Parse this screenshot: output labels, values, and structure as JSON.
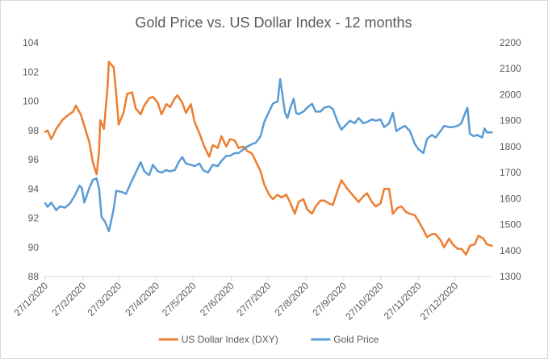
{
  "chart_data": {
    "type": "line",
    "title": "Gold Price vs. US Dollar Index - 12 months",
    "xlabel": "",
    "ylabel": "",
    "x_tick_labels": [
      "27/1/2020",
      "27/2/2020",
      "27/3/2020",
      "27/4/2020",
      "27/5/2020",
      "27/6/2020",
      "27/7/2020",
      "27/8/2020",
      "27/9/2020",
      "27/10/2020",
      "27/11/2020",
      "27/12/2020"
    ],
    "x_range": [
      "2020-01-27",
      "2021-01-27"
    ],
    "y_left": {
      "min": 88,
      "max": 104,
      "step": 2,
      "ticks": [
        "88",
        "90",
        "92",
        "94",
        "96",
        "98",
        "100",
        "102",
        "104"
      ]
    },
    "y_right": {
      "min": 1300,
      "max": 2200,
      "step": 100,
      "ticks": [
        "1300",
        "1400",
        "1500",
        "1600",
        "1700",
        "1800",
        "1900",
        "2000",
        "2100",
        "2200"
      ]
    },
    "grid": false,
    "legend_position": "bottom",
    "series": [
      {
        "name": "US Dollar Index (DXY)",
        "color": "#ED7D31",
        "axis": "left",
        "points": [
          [
            "2020-01-27",
            97.9
          ],
          [
            "2020-01-29",
            98.0
          ],
          [
            "2020-02-01",
            97.4
          ],
          [
            "2020-02-05",
            98.1
          ],
          [
            "2020-02-10",
            98.7
          ],
          [
            "2020-02-14",
            99.0
          ],
          [
            "2020-02-19",
            99.3
          ],
          [
            "2020-02-21",
            99.7
          ],
          [
            "2020-02-25",
            99.1
          ],
          [
            "2020-02-28",
            98.3
          ],
          [
            "2020-03-03",
            97.2
          ],
          [
            "2020-03-06",
            95.8
          ],
          [
            "2020-03-09",
            95.0
          ],
          [
            "2020-03-11",
            96.5
          ],
          [
            "2020-03-12",
            98.7
          ],
          [
            "2020-03-15",
            98.1
          ],
          [
            "2020-03-18",
            101.0
          ],
          [
            "2020-03-19",
            102.7
          ],
          [
            "2020-03-23",
            102.3
          ],
          [
            "2020-03-25",
            100.5
          ],
          [
            "2020-03-27",
            98.4
          ],
          [
            "2020-03-31",
            99.2
          ],
          [
            "2020-04-03",
            100.5
          ],
          [
            "2020-04-07",
            100.6
          ],
          [
            "2020-04-10",
            99.5
          ],
          [
            "2020-04-14",
            99.1
          ],
          [
            "2020-04-17",
            99.7
          ],
          [
            "2020-04-21",
            100.2
          ],
          [
            "2020-04-24",
            100.3
          ],
          [
            "2020-04-28",
            99.9
          ],
          [
            "2020-05-01",
            99.1
          ],
          [
            "2020-05-05",
            99.8
          ],
          [
            "2020-05-08",
            99.6
          ],
          [
            "2020-05-12",
            100.2
          ],
          [
            "2020-05-14",
            100.4
          ],
          [
            "2020-05-18",
            99.9
          ],
          [
            "2020-05-21",
            99.2
          ],
          [
            "2020-05-25",
            99.8
          ],
          [
            "2020-05-28",
            98.6
          ],
          [
            "2020-06-01",
            97.8
          ],
          [
            "2020-06-05",
            96.9
          ],
          [
            "2020-06-09",
            96.2
          ],
          [
            "2020-06-12",
            97.0
          ],
          [
            "2020-06-16",
            96.8
          ],
          [
            "2020-06-19",
            97.6
          ],
          [
            "2020-06-23",
            96.9
          ],
          [
            "2020-06-26",
            97.4
          ],
          [
            "2020-06-30",
            97.3
          ],
          [
            "2020-07-03",
            96.8
          ],
          [
            "2020-07-07",
            96.9
          ],
          [
            "2020-07-10",
            96.6
          ],
          [
            "2020-07-14",
            96.4
          ],
          [
            "2020-07-17",
            95.9
          ],
          [
            "2020-07-21",
            95.2
          ],
          [
            "2020-07-24",
            94.3
          ],
          [
            "2020-07-28",
            93.6
          ],
          [
            "2020-07-31",
            93.3
          ],
          [
            "2020-08-04",
            93.6
          ],
          [
            "2020-08-07",
            93.4
          ],
          [
            "2020-08-11",
            93.6
          ],
          [
            "2020-08-14",
            93.1
          ],
          [
            "2020-08-18",
            92.3
          ],
          [
            "2020-08-21",
            93.1
          ],
          [
            "2020-08-25",
            93.3
          ],
          [
            "2020-08-28",
            92.6
          ],
          [
            "2020-09-01",
            92.3
          ],
          [
            "2020-09-04",
            92.8
          ],
          [
            "2020-09-08",
            93.2
          ],
          [
            "2020-09-11",
            93.2
          ],
          [
            "2020-09-15",
            93.0
          ],
          [
            "2020-09-18",
            92.9
          ],
          [
            "2020-09-22",
            93.9
          ],
          [
            "2020-09-25",
            94.6
          ],
          [
            "2020-09-29",
            94.1
          ],
          [
            "2020-10-02",
            93.8
          ],
          [
            "2020-10-06",
            93.4
          ],
          [
            "2020-10-09",
            93.1
          ],
          [
            "2020-10-13",
            93.5
          ],
          [
            "2020-10-16",
            93.7
          ],
          [
            "2020-10-20",
            93.1
          ],
          [
            "2020-10-23",
            92.8
          ],
          [
            "2020-10-27",
            93.0
          ],
          [
            "2020-10-30",
            94.0
          ],
          [
            "2020-11-03",
            94.0
          ],
          [
            "2020-11-06",
            92.3
          ],
          [
            "2020-11-10",
            92.7
          ],
          [
            "2020-11-13",
            92.8
          ],
          [
            "2020-11-17",
            92.4
          ],
          [
            "2020-11-20",
            92.3
          ],
          [
            "2020-11-24",
            92.2
          ],
          [
            "2020-11-27",
            91.8
          ],
          [
            "2020-12-01",
            91.2
          ],
          [
            "2020-12-04",
            90.7
          ],
          [
            "2020-12-08",
            90.9
          ],
          [
            "2020-12-11",
            90.9
          ],
          [
            "2020-12-15",
            90.5
          ],
          [
            "2020-12-18",
            90.0
          ],
          [
            "2020-12-22",
            90.6
          ],
          [
            "2020-12-25",
            90.2
          ],
          [
            "2020-12-29",
            89.9
          ],
          [
            "2021-01-01",
            89.9
          ],
          [
            "2021-01-05",
            89.5
          ],
          [
            "2021-01-08",
            90.1
          ],
          [
            "2021-01-12",
            90.2
          ],
          [
            "2021-01-15",
            90.8
          ],
          [
            "2021-01-19",
            90.6
          ],
          [
            "2021-01-22",
            90.2
          ],
          [
            "2021-01-26",
            90.1
          ]
        ]
      },
      {
        "name": "Gold Price",
        "color": "#5B9BD5",
        "axis": "right",
        "points": [
          [
            "2020-01-27",
            1582
          ],
          [
            "2020-01-29",
            1568
          ],
          [
            "2020-02-01",
            1585
          ],
          [
            "2020-02-05",
            1555
          ],
          [
            "2020-02-08",
            1570
          ],
          [
            "2020-02-12",
            1565
          ],
          [
            "2020-02-16",
            1580
          ],
          [
            "2020-02-20",
            1610
          ],
          [
            "2020-02-24",
            1650
          ],
          [
            "2020-02-26",
            1640
          ],
          [
            "2020-02-28",
            1585
          ],
          [
            "2020-03-03",
            1640
          ],
          [
            "2020-03-06",
            1672
          ],
          [
            "2020-03-09",
            1678
          ],
          [
            "2020-03-11",
            1640
          ],
          [
            "2020-03-13",
            1530
          ],
          [
            "2020-03-16",
            1510
          ],
          [
            "2020-03-19",
            1474
          ],
          [
            "2020-03-23",
            1560
          ],
          [
            "2020-03-25",
            1630
          ],
          [
            "2020-03-30",
            1625
          ],
          [
            "2020-04-02",
            1618
          ],
          [
            "2020-04-06",
            1660
          ],
          [
            "2020-04-09",
            1690
          ],
          [
            "2020-04-14",
            1740
          ],
          [
            "2020-04-17",
            1705
          ],
          [
            "2020-04-21",
            1690
          ],
          [
            "2020-04-24",
            1730
          ],
          [
            "2020-04-28",
            1705
          ],
          [
            "2020-05-01",
            1700
          ],
          [
            "2020-05-05",
            1710
          ],
          [
            "2020-05-08",
            1705
          ],
          [
            "2020-05-12",
            1710
          ],
          [
            "2020-05-15",
            1740
          ],
          [
            "2020-05-18",
            1760
          ],
          [
            "2020-05-21",
            1735
          ],
          [
            "2020-05-25",
            1730
          ],
          [
            "2020-05-28",
            1725
          ],
          [
            "2020-06-01",
            1735
          ],
          [
            "2020-06-04",
            1710
          ],
          [
            "2020-06-08",
            1700
          ],
          [
            "2020-06-12",
            1730
          ],
          [
            "2020-06-16",
            1725
          ],
          [
            "2020-06-19",
            1745
          ],
          [
            "2020-06-23",
            1765
          ],
          [
            "2020-06-26",
            1765
          ],
          [
            "2020-06-30",
            1775
          ],
          [
            "2020-07-03",
            1775
          ],
          [
            "2020-07-07",
            1790
          ],
          [
            "2020-07-10",
            1800
          ],
          [
            "2020-07-14",
            1810
          ],
          [
            "2020-07-17",
            1815
          ],
          [
            "2020-07-21",
            1840
          ],
          [
            "2020-07-24",
            1895
          ],
          [
            "2020-07-28",
            1935
          ],
          [
            "2020-07-31",
            1965
          ],
          [
            "2020-08-04",
            1975
          ],
          [
            "2020-08-06",
            2060
          ],
          [
            "2020-08-10",
            1930
          ],
          [
            "2020-08-12",
            1910
          ],
          [
            "2020-08-14",
            1945
          ],
          [
            "2020-08-17",
            1985
          ],
          [
            "2020-08-19",
            1930
          ],
          [
            "2020-08-21",
            1925
          ],
          [
            "2020-08-25",
            1935
          ],
          [
            "2020-08-28",
            1950
          ],
          [
            "2020-09-01",
            1965
          ],
          [
            "2020-09-04",
            1935
          ],
          [
            "2020-09-08",
            1935
          ],
          [
            "2020-09-11",
            1950
          ],
          [
            "2020-09-15",
            1955
          ],
          [
            "2020-09-18",
            1945
          ],
          [
            "2020-09-22",
            1895
          ],
          [
            "2020-09-25",
            1865
          ],
          [
            "2020-09-29",
            1885
          ],
          [
            "2020-10-02",
            1900
          ],
          [
            "2020-10-06",
            1890
          ],
          [
            "2020-10-09",
            1910
          ],
          [
            "2020-10-13",
            1890
          ],
          [
            "2020-10-16",
            1895
          ],
          [
            "2020-10-20",
            1905
          ],
          [
            "2020-10-23",
            1900
          ],
          [
            "2020-10-27",
            1905
          ],
          [
            "2020-10-30",
            1875
          ],
          [
            "2020-11-03",
            1890
          ],
          [
            "2020-11-06",
            1930
          ],
          [
            "2020-11-09",
            1860
          ],
          [
            "2020-11-12",
            1870
          ],
          [
            "2020-11-16",
            1880
          ],
          [
            "2020-11-20",
            1860
          ],
          [
            "2020-11-24",
            1810
          ],
          [
            "2020-11-27",
            1790
          ],
          [
            "2020-12-01",
            1775
          ],
          [
            "2020-12-04",
            1830
          ],
          [
            "2020-12-08",
            1845
          ],
          [
            "2020-12-11",
            1835
          ],
          [
            "2020-12-15",
            1860
          ],
          [
            "2020-12-18",
            1880
          ],
          [
            "2020-12-22",
            1875
          ],
          [
            "2020-12-25",
            1875
          ],
          [
            "2020-12-29",
            1880
          ],
          [
            "2021-01-01",
            1890
          ],
          [
            "2021-01-05",
            1940
          ],
          [
            "2021-01-06",
            1950
          ],
          [
            "2021-01-08",
            1850
          ],
          [
            "2021-01-11",
            1840
          ],
          [
            "2021-01-14",
            1845
          ],
          [
            "2021-01-18",
            1835
          ],
          [
            "2021-01-20",
            1870
          ],
          [
            "2021-01-22",
            1855
          ],
          [
            "2021-01-26",
            1855
          ]
        ]
      }
    ]
  }
}
